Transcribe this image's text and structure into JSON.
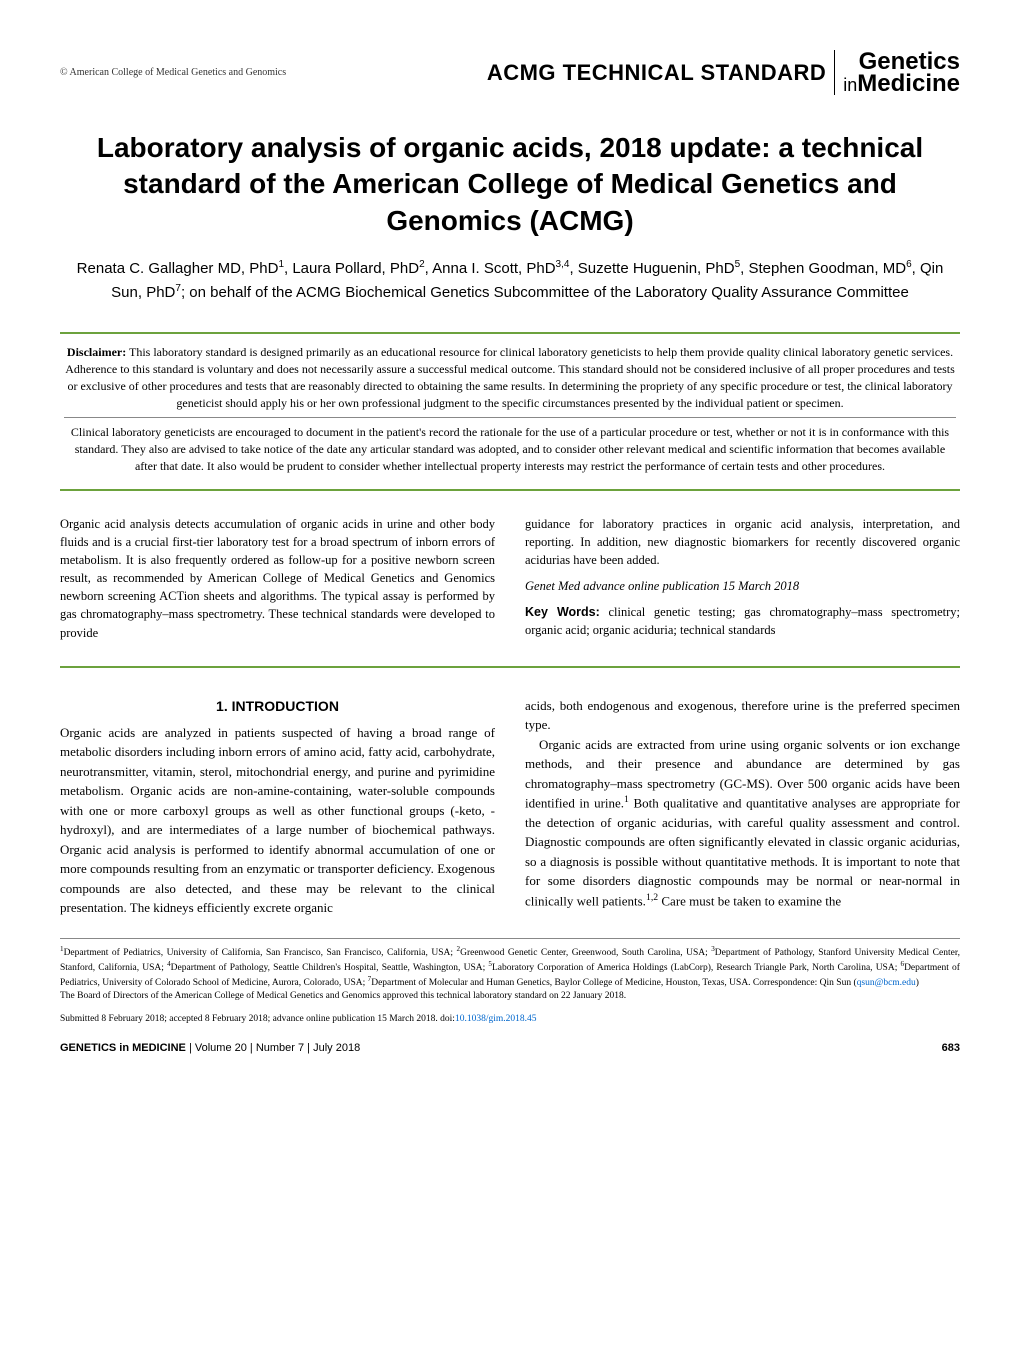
{
  "header": {
    "copyright": "© American College of Medical Genetics and Genomics",
    "section_type": "ACMG TECHNICAL STANDARD",
    "journal_line1": "Genetics",
    "journal_in": "in",
    "journal_med": "Medicine"
  },
  "title": "Laboratory analysis of organic acids, 2018 update: a technical standard of the American College of Medical Genetics and Genomics (ACMG)",
  "authors_html": "Renata C. Gallagher MD, PhD<sup>1</sup>, Laura Pollard, PhD<sup>2</sup>, Anna I. Scott, PhD<sup>3,4</sup>, Suzette Huguenin, PhD<sup>5</sup>, Stephen Goodman, MD<sup>6</sup>, Qin Sun, PhD<sup>7</sup>; on behalf of the ACMG Biochemical Genetics Subcommittee of the Laboratory Quality Assurance Committee",
  "disclaimer": {
    "label": "Disclaimer:",
    "para1": " This laboratory standard is designed primarily as an educational resource for clinical laboratory geneticists to help them provide quality clinical laboratory genetic services. Adherence to this standard is voluntary and does not necessarily assure a successful medical outcome. This standard should not be considered inclusive of all proper procedures and tests or exclusive of other procedures and tests that are reasonably directed to obtaining the same results. In determining the propriety of any specific procedure or test, the clinical laboratory geneticist should apply his or her own professional judgment to the specific circumstances presented by the individual patient or specimen.",
    "para2": "Clinical laboratory geneticists are encouraged to document in the patient's record the rationale for the use of a particular procedure or test, whether or not it is in conformance with this standard. They also are advised to take notice of the date any articular standard was adopted, and to consider other relevant medical and scientific information that becomes available after that date. It also would be prudent to consider whether intellectual property interests may restrict the performance of certain tests and other procedures."
  },
  "abstract": {
    "left": "Organic acid analysis detects accumulation of organic acids in urine and other body fluids and is a crucial first-tier laboratory test for a broad spectrum of inborn errors of metabolism. It is also frequently ordered as follow-up for a positive newborn screen result, as recommended by American College of Medical Genetics and Genomics newborn screening ACTion sheets and algorithms. The typical assay is performed by gas chromatography–mass spectrometry. These technical standards were developed to provide",
    "right1": "guidance for laboratory practices in organic acid analysis, interpretation, and reporting. In addition, new diagnostic biomarkers for recently discovered organic acidurias have been added.",
    "citation": "Genet Med advance online publication 15 March 2018",
    "keywords_label": "Key Words:",
    "keywords": " clinical genetic testing; gas chromatography–mass spectrometry; organic acid; organic aciduria; technical standards"
  },
  "body": {
    "heading": "1. INTRODUCTION",
    "left_p1": "Organic acids are analyzed in patients suspected of having a broad range of metabolic disorders including inborn errors of amino acid, fatty acid, carbohydrate, neurotransmitter, vitamin, sterol, mitochondrial energy, and purine and pyrimidine metabolism. Organic acids are non-amine-containing, water-soluble compounds with one or more carboxyl groups as well as other functional groups (-keto, -hydroxyl), and are intermediates of a large number of biochemical pathways. Organic acid analysis is performed to identify abnormal accumulation of one or more compounds resulting from an enzymatic or transporter deficiency. Exogenous compounds are also detected, and these may be relevant to the clinical presentation. The kidneys efficiently excrete organic",
    "right_p1": "acids, both endogenous and exogenous, therefore urine is the preferred specimen type.",
    "right_p2_html": "Organic acids are extracted from urine using organic solvents or ion exchange methods, and their presence and abundance are determined by gas chromatography–mass spectrometry (GC-MS). Over 500 organic acids have been identified in urine.<sup>1</sup> Both qualitative and quantitative analyses are appropriate for the detection of organic acidurias, with careful quality assessment and control. Diagnostic compounds are often significantly elevated in classic organic acidurias, so a diagnosis is possible without quantitative methods. It is important to note that for some disorders diagnostic compounds may be normal or near-normal in clinically well patients.<sup>1,2</sup> Care must be taken to examine the"
  },
  "footnotes_html": "<sup>1</sup>Department of Pediatrics, University of California, San Francisco, San Francisco, California, USA; <sup>2</sup>Greenwood Genetic Center, Greenwood, South Carolina, USA; <sup>3</sup>Department of Pathology, Stanford University Medical Center, Stanford, California, USA; <sup>4</sup>Department of Pathology, Seattle Children's Hospital, Seattle, Washington, USA; <sup>5</sup>Laboratory Corporation of America Holdings (LabCorp), Research Triangle Park, North Carolina, USA; <sup>6</sup>Department of Pediatrics, University of Colorado School of Medicine, Aurora, Colorado, USA; <sup>7</sup>Department of Molecular and Human Genetics, Baylor College of Medicine, Houston, Texas, USA. Correspondence: Qin Sun (<a href=\"#\">qsun@bcm.edu</a>)<br>The Board of Directors of the American College of Medical Genetics and Genomics approved this technical laboratory standard on 22 January 2018.",
  "submitted_html": "Submitted 8 February 2018; accepted 8 February 2018; advance online publication 15 March 2018. doi:<a href=\"#\">10.1038/gim.2018.45</a>",
  "footer": {
    "left_bold": "GENETICS in MEDICINE",
    "left_rest": " | Volume 20 | Number 7 | July 2018",
    "page": "683"
  },
  "colors": {
    "accent_green": "#6ca23d",
    "link_blue": "#0066cc",
    "text": "#000000",
    "bg": "#ffffff"
  }
}
